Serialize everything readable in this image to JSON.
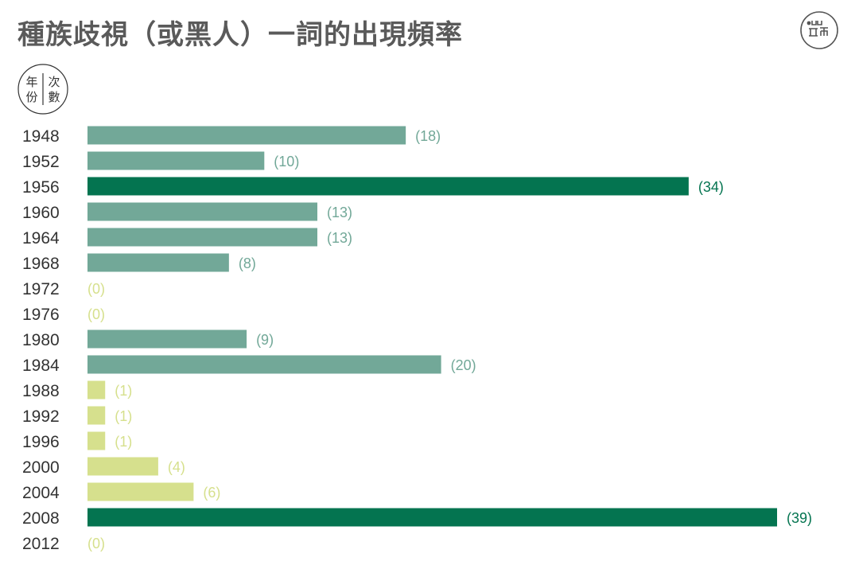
{
  "title": "種族歧視（或黑人）一詞的出現頻率",
  "legend_badge": {
    "left": "年份",
    "right": "次數"
  },
  "colors": {
    "high": "#047450",
    "mid": "#72a898",
    "low": "#d6e08d",
    "title": "#5a5a5a"
  },
  "chart_data": {
    "type": "bar",
    "orientation": "horizontal",
    "title": "種族歧視（或黑人）一詞的出現頻率",
    "xlabel": "次數",
    "ylabel": "年份",
    "categories": [
      "1948",
      "1952",
      "1956",
      "1960",
      "1964",
      "1968",
      "1972",
      "1976",
      "1980",
      "1984",
      "1988",
      "1992",
      "1996",
      "2000",
      "2004",
      "2008",
      "2012"
    ],
    "values": [
      18,
      10,
      34,
      13,
      13,
      8,
      0,
      0,
      9,
      20,
      1,
      1,
      1,
      4,
      6,
      39,
      0
    ],
    "value_labels": [
      "(18)",
      "(10)",
      "(34)",
      "(13)",
      "(13)",
      "(8)",
      "(0)",
      "(0)",
      "(9)",
      "(20)",
      "(1)",
      "(1)",
      "(1)",
      "(4)",
      "(6)",
      "(39)",
      "(0)"
    ],
    "xlim": [
      0,
      39
    ],
    "grid": false,
    "legend": "none"
  }
}
